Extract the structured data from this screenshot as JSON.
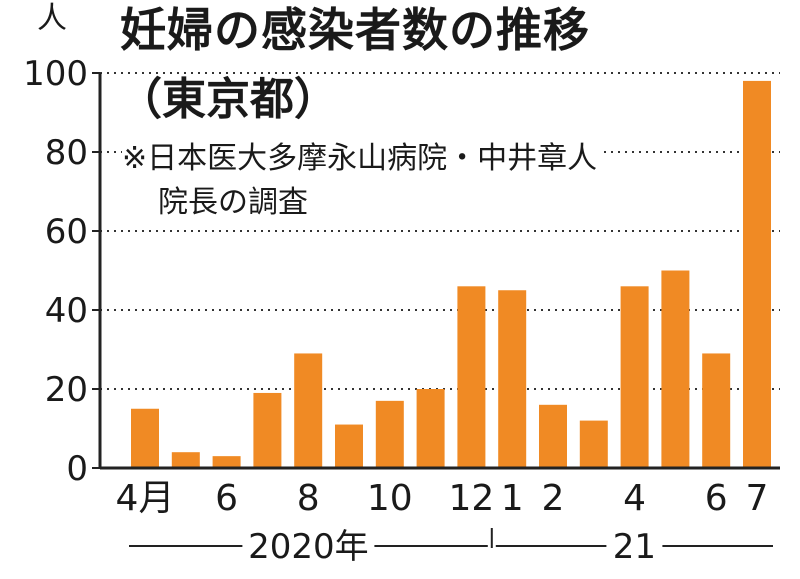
{
  "title": "妊婦の感染者数の推移",
  "subtitle": "（東京都）",
  "note_line1": "※日本医大多摩永山病院・中井章人",
  "note_line2": "院長の調査",
  "y_unit": "人",
  "colors": {
    "bar": "#f08a24",
    "axis": "#222222",
    "grid": "#333333",
    "text": "#1a1a1a"
  },
  "chart_data": {
    "type": "bar",
    "title": "妊婦の感染者数の推移（東京都）",
    "categories": [
      "2020-04",
      "2020-05",
      "2020-06",
      "2020-07",
      "2020-08",
      "2020-09",
      "2020-10",
      "2020-11",
      "2020-12",
      "2021-01",
      "2021-02",
      "2021-03",
      "2021-04",
      "2021-05",
      "2021-06",
      "2021-07"
    ],
    "values": [
      15,
      4,
      3,
      19,
      29,
      11,
      17,
      20,
      46,
      45,
      16,
      12,
      46,
      50,
      29,
      98
    ],
    "x_tick_labels": [
      "4月",
      "",
      "6",
      "",
      "8",
      "",
      "10",
      "",
      "12",
      "1",
      "2",
      "",
      "4",
      "",
      "6",
      "7"
    ],
    "year_labels": [
      "2020年",
      "21"
    ],
    "ylabel": "人",
    "ylim": [
      0,
      100
    ],
    "yticks": [
      0,
      20,
      40,
      60,
      80,
      100
    ],
    "grid": "dotted horizontal"
  }
}
